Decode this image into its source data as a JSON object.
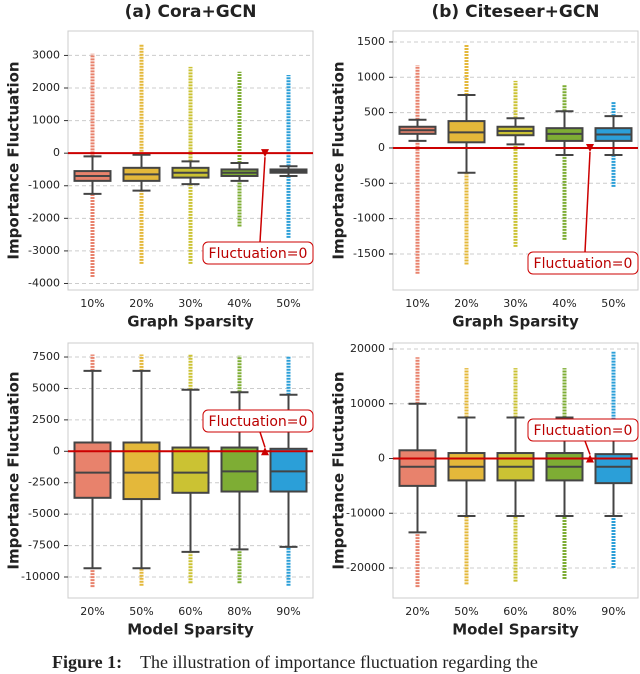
{
  "chart_data": [
    {
      "type": "box",
      "title": "(a) Cora+GCN",
      "xlabel": "Graph Sparsity",
      "ylabel": "Importance Fluctuation",
      "categories": [
        "10%",
        "20%",
        "30%",
        "40%",
        "50%"
      ],
      "colors": [
        "#e8826c",
        "#e4b83a",
        "#cbc233",
        "#7ead34",
        "#2b9fd8"
      ],
      "boxes": [
        {
          "whislo": -1250,
          "q1": -850,
          "med": -700,
          "q3": -550,
          "whishi": -100,
          "outlier_min": -3800,
          "outlier_max": 3050
        },
        {
          "whislo": -1150,
          "q1": -850,
          "med": -650,
          "q3": -450,
          "whishi": -50,
          "outlier_min": -3400,
          "outlier_max": 3350
        },
        {
          "whislo": -950,
          "q1": -750,
          "med": -600,
          "q3": -450,
          "whishi": -250,
          "outlier_min": -3400,
          "outlier_max": 2650
        },
        {
          "whislo": -850,
          "q1": -700,
          "med": -600,
          "q3": -500,
          "whishi": -300,
          "outlier_min": -2250,
          "outlier_max": 2500
        },
        {
          "whislo": -700,
          "q1": -600,
          "med": -550,
          "q3": -500,
          "whishi": -400,
          "outlier_min": -2600,
          "outlier_max": 2400
        }
      ],
      "ylim": [
        -4200,
        3750
      ],
      "yticks": [
        -4000,
        -3000,
        -2000,
        -1000,
        0,
        1000,
        2000,
        3000
      ],
      "grid": true,
      "reference_line": 0,
      "annotation": "Fluctuation=0"
    },
    {
      "type": "box",
      "title": "(b) Citeseer+GCN",
      "xlabel": "Graph Sparsity",
      "ylabel": "Importance Fluctuation",
      "categories": [
        "10%",
        "20%",
        "30%",
        "40%",
        "50%"
      ],
      "colors": [
        "#e8826c",
        "#e4b83a",
        "#cbc233",
        "#7ead34",
        "#2b9fd8"
      ],
      "boxes": [
        {
          "whislo": 100,
          "q1": 200,
          "med": 250,
          "q3": 300,
          "whishi": 400,
          "outlier_min": -1780,
          "outlier_max": 1170
        },
        {
          "whislo": -350,
          "q1": 80,
          "med": 220,
          "q3": 380,
          "whishi": 750,
          "outlier_min": -1650,
          "outlier_max": 1470
        },
        {
          "whislo": 50,
          "q1": 180,
          "med": 240,
          "q3": 300,
          "whishi": 420,
          "outlier_min": -1400,
          "outlier_max": 950
        },
        {
          "whislo": -100,
          "q1": 100,
          "med": 200,
          "q3": 280,
          "whishi": 520,
          "outlier_min": -1300,
          "outlier_max": 900
        },
        {
          "whislo": -100,
          "q1": 100,
          "med": 190,
          "q3": 280,
          "whishi": 450,
          "outlier_min": -550,
          "outlier_max": 650
        }
      ],
      "ylim": [
        -2010,
        1655
      ],
      "yticks": [
        -1500,
        -1000,
        -500,
        0,
        500,
        1000,
        1500
      ],
      "grid": true,
      "reference_line": 0,
      "annotation": "Fluctuation=0"
    },
    {
      "type": "box",
      "xlabel": "Model Sparsity",
      "ylabel": "Importance Fluctuation",
      "categories": [
        "20%",
        "50%",
        "60%",
        "80%",
        "90%"
      ],
      "colors": [
        "#e8826c",
        "#e4b83a",
        "#cbc233",
        "#7ead34",
        "#2b9fd8"
      ],
      "boxes": [
        {
          "whislo": -9300,
          "q1": -3700,
          "med": -1700,
          "q3": 700,
          "whishi": 6400,
          "outlier_min": -10800,
          "outlier_max": 7700
        },
        {
          "whislo": -9300,
          "q1": -3800,
          "med": -1700,
          "q3": 700,
          "whishi": 6400,
          "outlier_min": -10700,
          "outlier_max": 7700
        },
        {
          "whislo": -8000,
          "q1": -3300,
          "med": -1700,
          "q3": 300,
          "whishi": 4900,
          "outlier_min": -10500,
          "outlier_max": 7700
        },
        {
          "whislo": -7800,
          "q1": -3200,
          "med": -1600,
          "q3": 300,
          "whishi": 4700,
          "outlier_min": -10500,
          "outlier_max": 7600
        },
        {
          "whislo": -7600,
          "q1": -3200,
          "med": -1600,
          "q3": 200,
          "whishi": 4500,
          "outlier_min": -10700,
          "outlier_max": 7600
        }
      ],
      "ylim": [
        -11670,
        8615
      ],
      "yticks": [
        -10000,
        -7500,
        -5000,
        -2500,
        0,
        2500,
        5000,
        7500
      ],
      "grid": true,
      "reference_line": 0,
      "annotation": "Fluctuation=0"
    },
    {
      "type": "box",
      "xlabel": "Model Sparsity",
      "ylabel": "Importance Fluctuation",
      "categories": [
        "20%",
        "50%",
        "60%",
        "80%",
        "90%"
      ],
      "colors": [
        "#e8826c",
        "#e4b83a",
        "#cbc233",
        "#7ead34",
        "#2b9fd8"
      ],
      "boxes": [
        {
          "whislo": -13500,
          "q1": -5000,
          "med": -1500,
          "q3": 1500,
          "whishi": 10000,
          "outlier_min": -23500,
          "outlier_max": 18500
        },
        {
          "whislo": -10500,
          "q1": -4000,
          "med": -1500,
          "q3": 1000,
          "whishi": 7500,
          "outlier_min": -23000,
          "outlier_max": 16500
        },
        {
          "whislo": -10500,
          "q1": -4000,
          "med": -1500,
          "q3": 1000,
          "whishi": 7500,
          "outlier_min": -22500,
          "outlier_max": 16500
        },
        {
          "whislo": -10500,
          "q1": -4000,
          "med": -1500,
          "q3": 1000,
          "whishi": 7500,
          "outlier_min": -22000,
          "outlier_max": 16500
        },
        {
          "whislo": -10500,
          "q1": -4500,
          "med": -1500,
          "q3": 800,
          "whishi": 6000,
          "outlier_min": -20000,
          "outlier_max": 19500
        }
      ],
      "ylim": [
        -25480,
        21100
      ],
      "yticks": [
        -20000,
        -10000,
        0,
        10000,
        20000
      ],
      "grid": true,
      "reference_line": 0,
      "annotation": "Fluctuation=0"
    }
  ],
  "caption_label": "Figure 1:",
  "caption_text": "The illustration of importance fluctuation regarding the"
}
